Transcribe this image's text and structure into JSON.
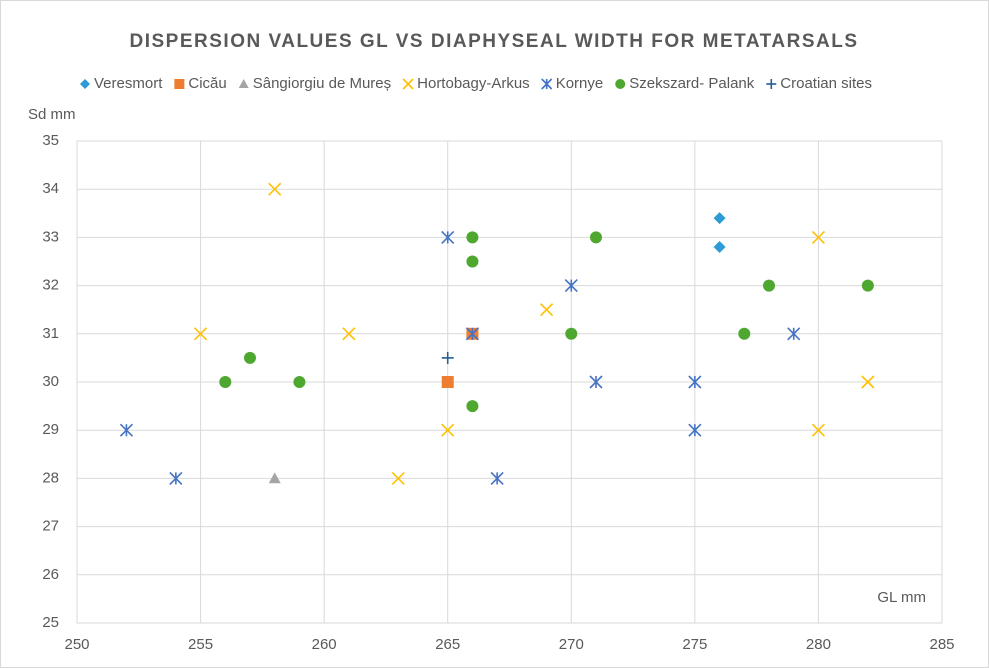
{
  "chart_data": {
    "type": "scatter",
    "title": "DISPERSION VALUES GL VS DIAPHYSEAL WIDTH FOR METATARSALS",
    "x_label": "GL mm",
    "y_label": "Sd mm",
    "xlim": [
      250,
      285
    ],
    "xticks": [
      250,
      255,
      260,
      265,
      270,
      275,
      280,
      285
    ],
    "ylim": [
      25,
      35
    ],
    "yticks": [
      25,
      26,
      27,
      28,
      29,
      30,
      31,
      32,
      33,
      34,
      35
    ],
    "grid": true,
    "legend": "top",
    "series": [
      {
        "name": "Veresmort",
        "color": "#2e9bd6",
        "marker": "diamond",
        "x": [
          276,
          276
        ],
        "y": [
          33.4,
          32.8
        ]
      },
      {
        "name": "Cicău",
        "color": "#ed7d31",
        "marker": "square",
        "x": [
          265,
          266
        ],
        "y": [
          30,
          31
        ]
      },
      {
        "name": "Sângiorgiu de Mureș",
        "color": "#a5a5a5",
        "marker": "triangle",
        "x": [
          258
        ],
        "y": [
          28
        ]
      },
      {
        "name": "Hortobagy-Arkus",
        "color": "#ffc000",
        "marker": "x",
        "x": [
          258,
          255,
          261,
          263,
          265,
          269,
          280,
          280,
          282
        ],
        "y": [
          34,
          31,
          31,
          28,
          29,
          31.5,
          33,
          29,
          30
        ]
      },
      {
        "name": "Kornye",
        "color": "#4472c4",
        "marker": "star",
        "x": [
          252,
          254,
          265,
          266,
          267,
          270,
          271,
          275,
          275,
          279
        ],
        "y": [
          29,
          28,
          33,
          31,
          28,
          32,
          30,
          30,
          29,
          31
        ]
      },
      {
        "name": "Szekszard- Palank",
        "color": "#4ea72e",
        "marker": "circle",
        "x": [
          256,
          257,
          259,
          266,
          266,
          266,
          270,
          271,
          277,
          278,
          282
        ],
        "y": [
          30,
          30.5,
          30,
          33,
          32.5,
          29.5,
          31,
          33,
          31,
          32,
          32
        ]
      },
      {
        "name": "Croatian sites",
        "color": "#255e91",
        "marker": "plus",
        "x": [
          265
        ],
        "y": [
          30.5
        ]
      }
    ]
  }
}
